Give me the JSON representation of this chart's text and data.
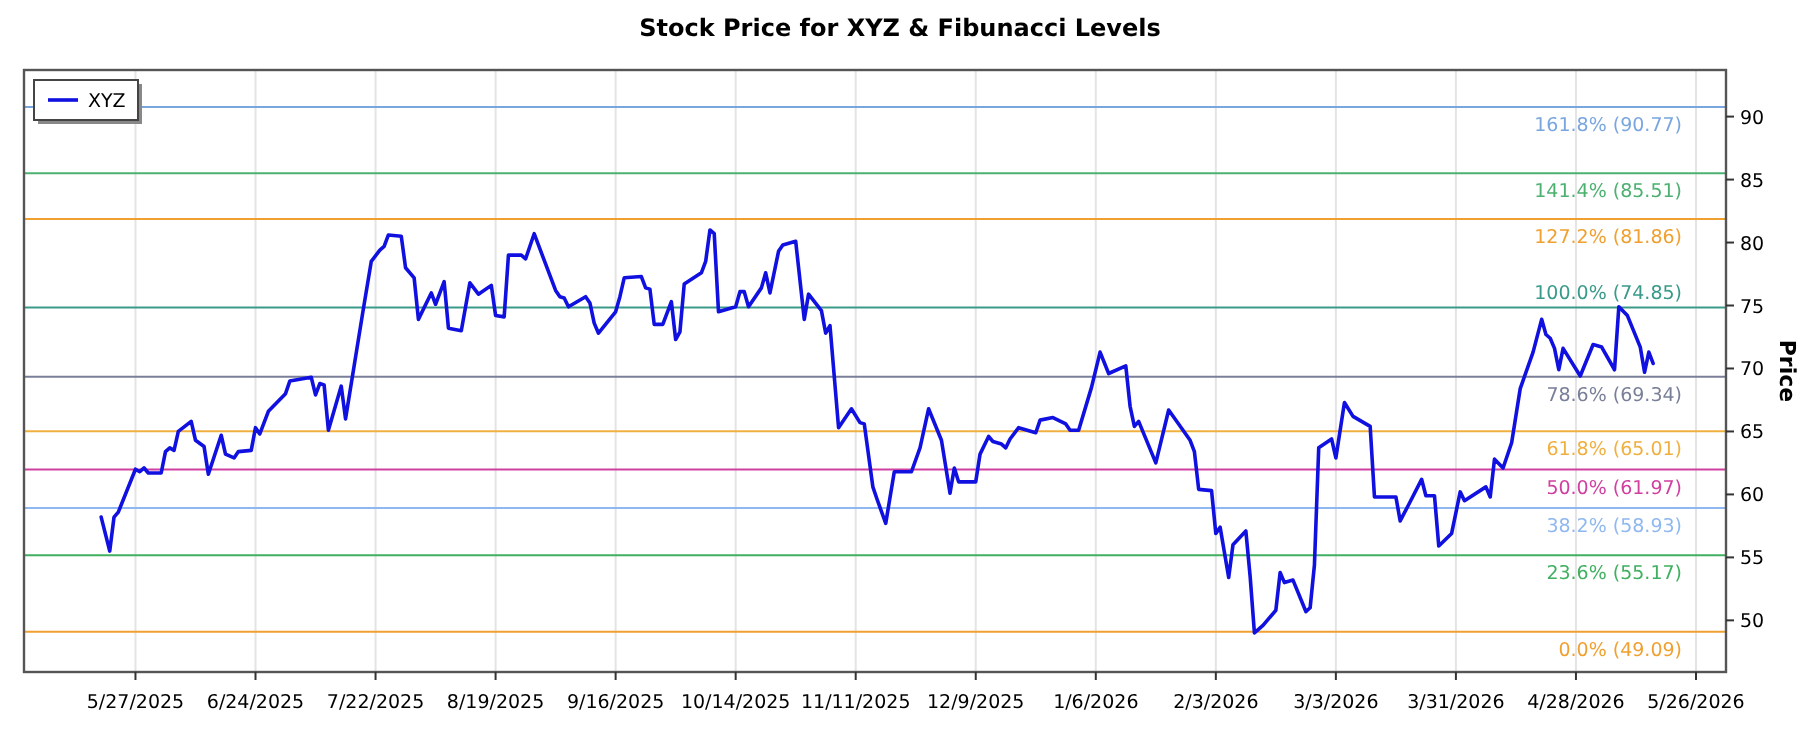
{
  "chart_data": {
    "type": "line",
    "title": "Stock Price for XYZ & Fibunacci Levels",
    "ylabel": "Price",
    "x": [
      "2025-05-19",
      "2025-05-21",
      "2025-05-22",
      "2025-05-23",
      "2025-05-27",
      "2025-05-28",
      "2025-05-29",
      "2025-05-30",
      "2025-06-02",
      "2025-06-03",
      "2025-06-04",
      "2025-06-05",
      "2025-06-06",
      "2025-06-09",
      "2025-06-10",
      "2025-06-12",
      "2025-06-13",
      "2025-06-16",
      "2025-06-17",
      "2025-06-19",
      "2025-06-20",
      "2025-06-23",
      "2025-06-24",
      "2025-06-25",
      "2025-06-27",
      "2025-07-01",
      "2025-07-02",
      "2025-07-07",
      "2025-07-08",
      "2025-07-09",
      "2025-07-10",
      "2025-07-11",
      "2025-07-14",
      "2025-07-15",
      "2025-07-17",
      "2025-07-19",
      "2025-07-21",
      "2025-07-23",
      "2025-07-24",
      "2025-07-25",
      "2025-07-28",
      "2025-07-29",
      "2025-07-31",
      "2025-08-01",
      "2025-08-04",
      "2025-08-05",
      "2025-08-07",
      "2025-08-08",
      "2025-08-11",
      "2025-08-13",
      "2025-08-15",
      "2025-08-18",
      "2025-08-19",
      "2025-08-21",
      "2025-08-22",
      "2025-08-25",
      "2025-08-26",
      "2025-08-28",
      "2025-09-02",
      "2025-09-03",
      "2025-09-04",
      "2025-09-05",
      "2025-09-09",
      "2025-09-10",
      "2025-09-11",
      "2025-09-12",
      "2025-09-16",
      "2025-09-17",
      "2025-09-18",
      "2025-09-22",
      "2025-09-23",
      "2025-09-24",
      "2025-09-25",
      "2025-09-27",
      "2025-09-29",
      "2025-09-30",
      "2025-10-01",
      "2025-10-02",
      "2025-10-06",
      "2025-10-07",
      "2025-10-08",
      "2025-10-09",
      "2025-10-10",
      "2025-10-14",
      "2025-10-15",
      "2025-10-16",
      "2025-10-17",
      "2025-10-20",
      "2025-10-21",
      "2025-10-22",
      "2025-10-24",
      "2025-10-25",
      "2025-10-28",
      "2025-10-30",
      "2025-10-31",
      "2025-11-03",
      "2025-11-04",
      "2025-11-05",
      "2025-11-07",
      "2025-11-10",
      "2025-11-12",
      "2025-11-13",
      "2025-11-15",
      "2025-11-16",
      "2025-11-18",
      "2025-11-20",
      "2025-11-24",
      "2025-11-26",
      "2025-11-28",
      "2025-12-01",
      "2025-12-03",
      "2025-12-04",
      "2025-12-05",
      "2025-12-09",
      "2025-12-10",
      "2025-12-12",
      "2025-12-13",
      "2025-12-15",
      "2025-12-16",
      "2025-12-17",
      "2025-12-19",
      "2025-12-23",
      "2025-12-24",
      "2025-12-27",
      "2025-12-30",
      "2025-12-31",
      "2026-01-02",
      "2026-01-05",
      "2026-01-07",
      "2026-01-09",
      "2026-01-13",
      "2026-01-14",
      "2026-01-15",
      "2026-01-16",
      "2026-01-20",
      "2026-01-23",
      "2026-01-28",
      "2026-01-29",
      "2026-01-30",
      "2026-02-02",
      "2026-02-03",
      "2026-02-04",
      "2026-02-06",
      "2026-02-07",
      "2026-02-10",
      "2026-02-11",
      "2026-02-12",
      "2026-02-14",
      "2026-02-17",
      "2026-02-18",
      "2026-02-19",
      "2026-02-21",
      "2026-02-24",
      "2026-02-25",
      "2026-02-26",
      "2026-02-27",
      "2026-03-02",
      "2026-03-03",
      "2026-03-05",
      "2026-03-07",
      "2026-03-11",
      "2026-03-12",
      "2026-03-17",
      "2026-03-18",
      "2026-03-20",
      "2026-03-23",
      "2026-03-24",
      "2026-03-26",
      "2026-03-27",
      "2026-03-30",
      "2026-04-01",
      "2026-04-02",
      "2026-04-07",
      "2026-04-08",
      "2026-04-09",
      "2026-04-11",
      "2026-04-13",
      "2026-04-15",
      "2026-04-18",
      "2026-04-20",
      "2026-04-21",
      "2026-04-22",
      "2026-04-23",
      "2026-04-24",
      "2026-04-25",
      "2026-04-29",
      "2026-05-02",
      "2026-05-04",
      "2026-05-07",
      "2026-05-08",
      "2026-05-10",
      "2026-05-13",
      "2026-05-14",
      "2026-05-15",
      "2026-05-16"
    ],
    "series": [
      {
        "name": "XYZ",
        "color": "#1010e0",
        "values": [
          58.2,
          55.5,
          58.2,
          58.6,
          62.0,
          61.8,
          62.1,
          61.7,
          61.7,
          63.4,
          63.7,
          63.5,
          65.0,
          65.8,
          64.3,
          63.8,
          61.6,
          64.7,
          63.2,
          62.9,
          63.4,
          63.5,
          65.3,
          64.8,
          66.6,
          68.0,
          69.0,
          69.3,
          67.9,
          68.8,
          68.7,
          65.1,
          68.6,
          66.0,
          70.2,
          74.4,
          78.5,
          79.4,
          79.7,
          80.6,
          80.5,
          78.0,
          77.2,
          73.9,
          76.0,
          75.1,
          76.9,
          73.2,
          73.0,
          76.8,
          75.9,
          76.6,
          74.2,
          74.1,
          79.0,
          79.0,
          78.7,
          80.7,
          76.2,
          75.7,
          75.6,
          74.9,
          75.7,
          75.2,
          73.6,
          72.8,
          74.5,
          75.7,
          77.2,
          77.3,
          76.4,
          76.3,
          73.5,
          73.5,
          75.3,
          72.3,
          72.9,
          76.7,
          77.6,
          78.5,
          81.0,
          80.7,
          74.5,
          74.9,
          76.1,
          76.1,
          74.9,
          76.4,
          77.6,
          76.0,
          79.3,
          79.8,
          80.1,
          73.9,
          75.9,
          74.6,
          72.8,
          73.4,
          65.3,
          66.8,
          65.7,
          65.6,
          60.6,
          59.6,
          57.7,
          61.8,
          61.8,
          63.7,
          66.8,
          64.3,
          60.1,
          62.1,
          61.0,
          61.0,
          63.2,
          64.6,
          64.2,
          64.0,
          63.7,
          64.4,
          65.3,
          64.9,
          65.9,
          66.1,
          65.6,
          65.1,
          65.1,
          68.5,
          71.3,
          69.6,
          70.2,
          67.0,
          65.4,
          65.8,
          62.5,
          66.7,
          64.3,
          63.4,
          60.4,
          60.3,
          56.9,
          57.4,
          53.4,
          56.0,
          57.1,
          53.5,
          49.0,
          49.6,
          50.8,
          53.8,
          53.0,
          53.2,
          50.7,
          51.0,
          54.4,
          63.7,
          64.4,
          62.9,
          67.3,
          66.2,
          65.4,
          59.8,
          59.8,
          57.9,
          59.2,
          61.2,
          59.9,
          59.9,
          55.9,
          56.9,
          60.2,
          59.5,
          60.6,
          59.8,
          62.8,
          62.1,
          64.1,
          68.4,
          71.3,
          73.9,
          72.7,
          72.4,
          71.6,
          69.9,
          71.6,
          69.4,
          71.9,
          71.7,
          69.9,
          74.9,
          74.2,
          71.7,
          69.7,
          71.3,
          70.4
        ]
      }
    ],
    "xlim": [
      "2025-05-01",
      "2026-06-02"
    ],
    "xticks": [
      {
        "value": "2025-05-27",
        "label": "5/27/2025"
      },
      {
        "value": "2025-06-24",
        "label": "6/24/2025"
      },
      {
        "value": "2025-07-22",
        "label": "7/22/2025"
      },
      {
        "value": "2025-08-19",
        "label": "8/19/2025"
      },
      {
        "value": "2025-09-16",
        "label": "9/16/2025"
      },
      {
        "value": "2025-10-14",
        "label": "10/14/2025"
      },
      {
        "value": "2025-11-11",
        "label": "11/11/2025"
      },
      {
        "value": "2025-12-09",
        "label": "12/9/2025"
      },
      {
        "value": "2026-01-06",
        "label": "1/6/2026"
      },
      {
        "value": "2026-02-03",
        "label": "2/3/2026"
      },
      {
        "value": "2026-03-03",
        "label": "3/3/2026"
      },
      {
        "value": "2026-03-31",
        "label": "3/31/2026"
      },
      {
        "value": "2026-04-28",
        "label": "4/28/2026"
      },
      {
        "value": "2026-05-26",
        "label": "5/26/2026"
      }
    ],
    "ylim": [
      45.9,
      93.7
    ],
    "yticks": [
      50,
      55,
      60,
      65,
      70,
      75,
      80,
      85,
      90
    ],
    "ref_lines": [
      {
        "axis": "y",
        "value": 90.77,
        "label": "161.8% (90.77)",
        "color": "#7aa6e0"
      },
      {
        "axis": "y",
        "value": 85.51,
        "label": "141.4% (85.51)",
        "color": "#4cb070"
      },
      {
        "axis": "y",
        "value": 81.86,
        "label": "127.2% (81.86)",
        "color": "#f0a030"
      },
      {
        "axis": "y",
        "value": 74.85,
        "label": "100.0% (74.85)",
        "color": "#3a9a8a"
      },
      {
        "axis": "y",
        "value": 69.34,
        "label": "78.6% (69.34)",
        "color": "#7a7f99"
      },
      {
        "axis": "y",
        "value": 65.01,
        "label": "61.8% (65.01)",
        "color": "#f0b040"
      },
      {
        "axis": "y",
        "value": 61.97,
        "label": "50.0% (61.97)",
        "color": "#d040a0"
      },
      {
        "axis": "y",
        "value": 58.93,
        "label": "38.2% (58.93)",
        "color": "#90b8f0"
      },
      {
        "axis": "y",
        "value": 55.17,
        "label": "23.6% (55.17)",
        "color": "#40b060"
      },
      {
        "axis": "y",
        "value": 49.09,
        "label": "0.0% (49.09)",
        "color": "#f0a030"
      }
    ],
    "grid": "x",
    "legend": "top left",
    "marker": "none",
    "line_style": "solid"
  }
}
